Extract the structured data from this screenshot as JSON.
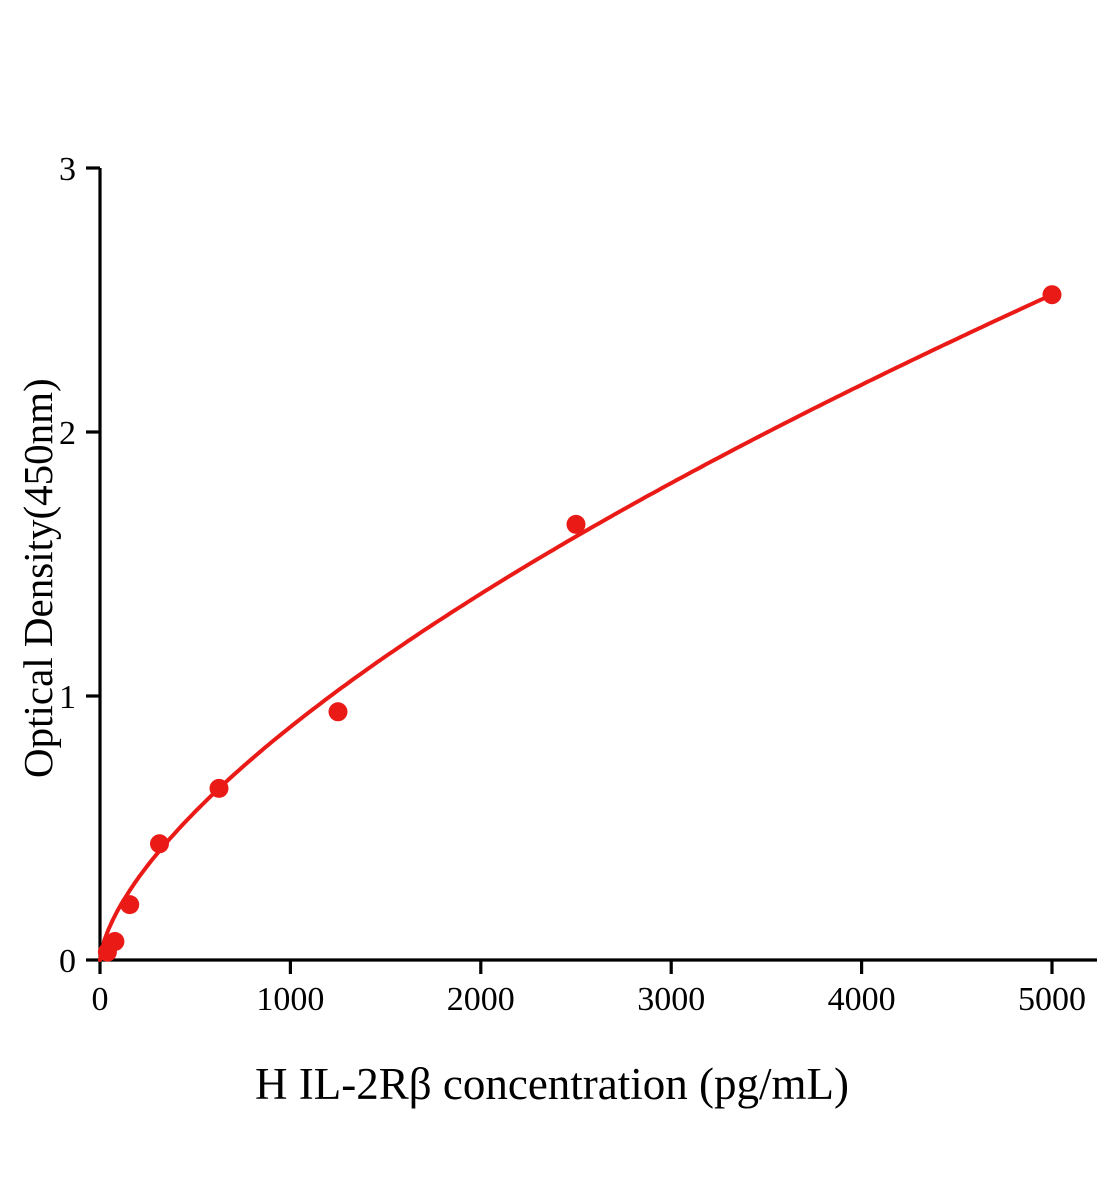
{
  "chart_data": {
    "type": "scatter",
    "title": "",
    "xlabel": "H IL-2Rβ concentration (pg/mL)",
    "ylabel": "Optical Density(450nm)",
    "x": [
      39.1,
      78.1,
      156.2,
      312.5,
      625,
      1250,
      2500,
      5000
    ],
    "y": [
      0.03,
      0.07,
      0.21,
      0.44,
      0.65,
      0.94,
      1.65,
      2.52
    ],
    "xlim": [
      0,
      5250
    ],
    "ylim": [
      0,
      3
    ],
    "x_ticks": [
      0,
      1000,
      2000,
      3000,
      4000,
      5000
    ],
    "y_ticks": [
      0,
      1,
      2,
      3
    ],
    "curve_type": "power fit through standards",
    "legend": "none",
    "grid": "off",
    "point_color": "#ea1a17",
    "line_color": "#ea1a17",
    "axis_color": "#000000",
    "background": "#ffffff"
  }
}
